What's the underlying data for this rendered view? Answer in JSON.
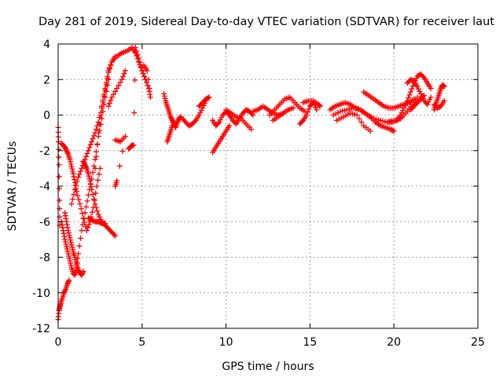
{
  "chart_data": {
    "type": "scatter",
    "title": "Day 281 of 2019, Sidereal Day-to-day VTEC variation (SDTVAR) for receiver laut",
    "xlabel": "GPS time / hours",
    "ylabel": "SDTVAR / TECUs",
    "xlim": [
      0,
      25
    ],
    "ylim": [
      -12,
      4
    ],
    "xticks": [
      0,
      5,
      10,
      15,
      20,
      25
    ],
    "yticks": [
      -12,
      -10,
      -8,
      -6,
      -4,
      -2,
      0,
      2,
      4
    ],
    "grid": true,
    "marker": "plus",
    "color": "#ff0000",
    "series": [
      {
        "name": "arc1",
        "x": [
          0.0,
          0.02,
          0.05,
          0.08,
          0.1
        ],
        "y": [
          -0.7,
          -1.5,
          -2.8,
          -4.8,
          -6.2
        ]
      },
      {
        "name": "arc2",
        "x": [
          0.0,
          0.05,
          0.1,
          0.15,
          0.25,
          0.35,
          0.45,
          0.55,
          0.65
        ],
        "y": [
          -11.5,
          -11.0,
          -10.8,
          -10.6,
          -10.3,
          -10.0,
          -9.8,
          -9.5,
          -9.3
        ]
      },
      {
        "name": "arc3",
        "x": [
          0.2,
          0.3,
          0.4,
          0.5,
          0.6,
          0.7,
          0.8,
          0.9,
          1.0,
          1.1,
          1.2,
          1.4,
          1.6,
          1.8,
          2.0,
          2.2,
          2.4,
          2.6,
          2.8,
          3.0
        ],
        "y": [
          -6.0,
          -6.5,
          -7.0,
          -7.4,
          -7.8,
          -8.2,
          -8.6,
          -8.9,
          -9.0,
          -8.6,
          -7.8,
          -6.5,
          -5.5,
          -4.5,
          -3.6,
          -2.5,
          -1.2,
          -0.2,
          1.0,
          2.0
        ]
      },
      {
        "name": "arc4",
        "x": [
          0.2,
          0.3,
          0.4,
          0.5,
          0.6,
          0.7,
          0.8,
          0.9,
          1.0,
          1.1,
          1.3,
          1.5,
          1.7,
          1.9,
          2.1,
          2.3,
          2.5
        ],
        "y": [
          -1.6,
          -1.7,
          -1.8,
          -2.0,
          -2.2,
          -2.5,
          -2.9,
          -3.3,
          -3.8,
          -4.3,
          -5.0,
          -5.8,
          -6.5,
          -6.0,
          -5.2,
          -4.0,
          -3.0
        ]
      },
      {
        "name": "arc5",
        "x": [
          0.4,
          0.5,
          0.6,
          0.7,
          0.8,
          0.9,
          1.0,
          1.1,
          1.2,
          1.3,
          1.4,
          1.5
        ],
        "y": [
          -5.5,
          -6.0,
          -6.5,
          -6.9,
          -7.3,
          -7.7,
          -8.0,
          -8.4,
          -8.7,
          -8.9,
          -9.0,
          -8.8
        ]
      },
      {
        "name": "arc6",
        "x": [
          0.8,
          1.0,
          1.2,
          1.4,
          1.6,
          1.8,
          2.0,
          2.2,
          2.4,
          2.6,
          2.8,
          3.0,
          3.2,
          3.4
        ],
        "y": [
          -5.0,
          -4.2,
          -3.5,
          -3.0,
          -2.5,
          -2.0,
          -1.5,
          -1.0,
          -0.4,
          0.4,
          1.4,
          2.4,
          3.0,
          3.3
        ]
      },
      {
        "name": "arc7",
        "x": [
          1.5,
          1.6,
          1.7,
          1.8,
          1.9,
          2.0,
          2.2,
          2.4,
          2.6,
          2.8,
          3.0,
          3.2,
          3.4
        ],
        "y": [
          -2.6,
          -2.8,
          -3.0,
          -3.3,
          -3.7,
          -4.2,
          -5.0,
          -5.6,
          -6.0,
          -6.2,
          -6.4,
          -6.6,
          -6.8
        ]
      },
      {
        "name": "arc8",
        "x": [
          1.8,
          2.0,
          2.2,
          2.4,
          2.6,
          2.8
        ],
        "y": [
          -5.8,
          -5.9,
          -6.0,
          -6.0,
          -6.1,
          -6.1
        ]
      },
      {
        "name": "arc9",
        "x": [
          2.2,
          2.4,
          2.6,
          2.8,
          3.0,
          3.2,
          3.5,
          3.8,
          4.1,
          4.4,
          4.6,
          4.8,
          5.0,
          5.2
        ],
        "y": [
          -3.0,
          -1.0,
          0.5,
          1.5,
          2.5,
          3.0,
          3.3,
          3.5,
          3.6,
          3.8,
          3.5,
          3.0,
          2.5,
          2.0
        ]
      },
      {
        "name": "arc10",
        "x": [
          3.0,
          3.2,
          3.5,
          3.8,
          4.0
        ],
        "y": [
          0.5,
          1.0,
          1.5,
          2.0,
          2.5
        ]
      },
      {
        "name": "arc11",
        "x": [
          3.4,
          3.7,
          4.0,
          3.5,
          3.4
        ],
        "y": [
          -1.4,
          -1.5,
          -1.2,
          -3.7,
          -4.0
        ]
      },
      {
        "name": "arc12",
        "x": [
          4.2,
          4.3,
          4.4,
          4.5,
          4.6,
          4.8,
          5.0,
          5.2,
          5.4,
          5.5,
          5.3,
          5.1
        ],
        "y": [
          -1.9,
          -1.8,
          -1.7,
          -1.7,
          3.8,
          3.2,
          2.5,
          2.0,
          1.5,
          1.0,
          2.5,
          2.8
        ]
      },
      {
        "name": "arc13",
        "x": [
          6.3,
          6.4,
          6.5,
          6.6,
          6.7,
          6.8,
          6.9,
          7.0,
          7.1,
          7.2,
          7.3
        ],
        "y": [
          1.2,
          0.8,
          0.5,
          0.2,
          -0.1,
          -0.3,
          -0.5,
          -0.7,
          -0.4,
          -0.2,
          -0.1
        ]
      },
      {
        "name": "arc14",
        "x": [
          6.5,
          6.6,
          6.7,
          6.8
        ],
        "y": [
          -1.5,
          -1.2,
          -0.9,
          -0.6
        ]
      },
      {
        "name": "arc15",
        "x": [
          7.4,
          7.6,
          7.8,
          8.0,
          8.2,
          8.4,
          8.6,
          8.8
        ],
        "y": [
          -0.2,
          -0.4,
          -0.6,
          -0.5,
          -0.3,
          0.0,
          0.4,
          0.8
        ]
      },
      {
        "name": "arc16",
        "x": [
          8.4,
          8.6,
          8.8,
          9.0
        ],
        "y": [
          0.5,
          0.7,
          0.9,
          1.0
        ]
      },
      {
        "name": "arc17",
        "x": [
          9.2,
          9.4,
          9.6,
          9.8,
          10.0,
          10.2,
          10.4,
          10.6,
          10.8,
          11.0,
          11.2,
          11.4,
          11.6
        ],
        "y": [
          -0.3,
          -0.6,
          -0.4,
          0.0,
          0.2,
          0.0,
          -0.3,
          -0.5,
          -0.2,
          0.1,
          0.3,
          0.2,
          0.0
        ]
      },
      {
        "name": "arc18",
        "x": [
          9.2,
          9.4,
          9.6,
          9.8,
          10.0,
          10.2
        ],
        "y": [
          -2.1,
          -1.8,
          -1.5,
          -1.2,
          -0.9,
          -0.6
        ]
      },
      {
        "name": "arc19",
        "x": [
          10.0,
          10.3,
          10.6,
          10.9,
          11.2,
          11.5
        ],
        "y": [
          0.3,
          0.1,
          -0.1,
          -0.2,
          -0.5,
          -0.8
        ]
      },
      {
        "name": "arc20",
        "x": [
          11.6,
          11.9,
          12.2,
          12.5,
          12.8,
          13.1,
          13.4
        ],
        "y": [
          0.2,
          0.3,
          0.5,
          0.3,
          0.1,
          0.0,
          0.1
        ]
      },
      {
        "name": "arc21",
        "x": [
          12.6,
          12.9,
          13.2,
          13.5,
          13.8,
          14.1,
          14.4,
          14.7
        ],
        "y": [
          0.0,
          0.3,
          0.6,
          0.9,
          1.0,
          0.7,
          0.4,
          0.2
        ]
      },
      {
        "name": "arc22",
        "x": [
          12.8,
          13.1,
          13.4,
          13.7,
          14.0
        ],
        "y": [
          -0.3,
          -0.1,
          0.1,
          0.3,
          0.4
        ]
      },
      {
        "name": "arc23",
        "x": [
          14.4,
          14.6,
          14.8,
          15.0,
          15.2,
          15.4
        ],
        "y": [
          -0.5,
          -0.3,
          0.0,
          0.5,
          0.7,
          0.3
        ]
      },
      {
        "name": "arc24",
        "x": [
          14.6,
          14.9,
          15.2,
          15.5,
          15.6
        ],
        "y": [
          0.7,
          0.8,
          0.8,
          0.6,
          0.5
        ]
      },
      {
        "name": "arc25",
        "x": [
          16.2,
          16.5,
          16.8,
          17.1,
          17.4,
          17.7,
          18.0,
          18.3,
          18.6,
          18.9,
          19.2,
          19.5,
          19.8,
          20.0
        ],
        "y": [
          0.3,
          0.5,
          0.6,
          0.7,
          0.6,
          0.4,
          0.3,
          0.1,
          -0.1,
          -0.4,
          -0.6,
          -0.7,
          -0.8,
          -0.9
        ]
      },
      {
        "name": "arc26",
        "x": [
          16.4,
          16.8,
          17.2,
          17.6,
          18.0,
          18.4,
          18.8,
          19.2,
          19.6,
          20.0,
          20.4
        ],
        "y": [
          0.0,
          0.2,
          0.3,
          0.4,
          0.3,
          0.0,
          -0.2,
          -0.3,
          -0.4,
          -0.3,
          -0.2
        ]
      },
      {
        "name": "arc27",
        "x": [
          16.6,
          17.0,
          17.4,
          17.8,
          18.2,
          18.6
        ],
        "y": [
          -0.3,
          -0.1,
          0.1,
          0.0,
          -0.6,
          -0.9
        ]
      },
      {
        "name": "arc28",
        "x": [
          18.2,
          18.5,
          18.8,
          19.1,
          19.4,
          19.7,
          20.0,
          20.3,
          20.6,
          20.9,
          21.2
        ],
        "y": [
          1.3,
          1.1,
          0.9,
          0.7,
          0.5,
          0.4,
          0.4,
          0.5,
          0.6,
          0.7,
          0.9
        ]
      },
      {
        "name": "arc29",
        "x": [
          19.6,
          19.9,
          20.2,
          20.5,
          20.8,
          21.1,
          21.4
        ],
        "y": [
          -0.4,
          -0.4,
          -0.3,
          -0.1,
          0.2,
          0.6,
          1.0
        ]
      },
      {
        "name": "arc30",
        "x": [
          20.2,
          20.4,
          20.6,
          20.8,
          21.0,
          21.2,
          21.4,
          21.6,
          21.8,
          22.0,
          22.2
        ],
        "y": [
          -0.3,
          0.0,
          0.4,
          0.8,
          1.3,
          1.8,
          2.2,
          2.3,
          2.1,
          1.8,
          1.5
        ]
      },
      {
        "name": "arc31",
        "x": [
          20.8,
          21.0,
          21.2,
          21.4,
          21.6,
          21.8,
          22.0,
          22.2
        ],
        "y": [
          1.8,
          2.0,
          1.9,
          1.6,
          1.2,
          0.8,
          0.6,
          1.0
        ]
      },
      {
        "name": "arc32",
        "x": [
          21.0,
          21.2,
          21.4,
          21.6,
          21.8
        ],
        "y": [
          0.3,
          0.5,
          0.7,
          0.9,
          1.1
        ]
      },
      {
        "name": "arc33",
        "x": [
          22.4,
          22.5,
          22.6,
          22.7,
          22.8,
          22.9,
          23.0
        ],
        "y": [
          0.3,
          0.6,
          0.9,
          1.2,
          1.5,
          1.7,
          1.6
        ]
      },
      {
        "name": "arc34",
        "x": [
          22.4,
          22.6,
          22.8,
          23.0
        ],
        "y": [
          0.6,
          0.4,
          0.5,
          0.8
        ]
      }
    ]
  }
}
